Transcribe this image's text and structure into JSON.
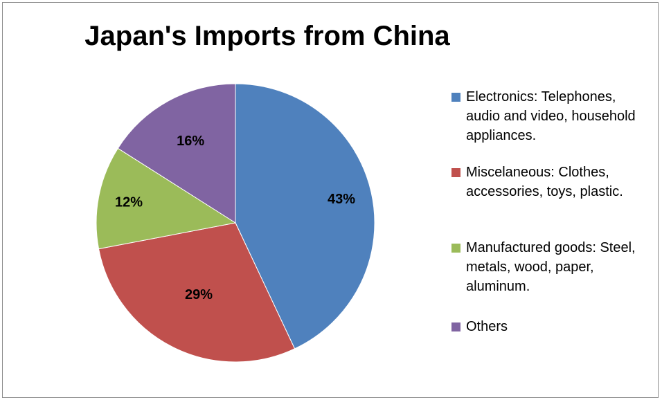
{
  "chart_data": {
    "type": "pie",
    "title": "Japan's Imports from China",
    "categories": [
      "Electronics: Telephones, audio and video, household appliances.",
      "Miscelaneous: Clothes, accessories, toys, plastic.",
      "Manufactured goods: Steel, metals, wood, paper, aluminum.",
      "Others"
    ],
    "values": [
      43,
      29,
      12,
      16
    ],
    "labels": [
      "43%",
      "29%",
      "12%",
      "16%"
    ],
    "colors": [
      "#4f81bd",
      "#c0504d",
      "#9bbb59",
      "#8064a2"
    ],
    "legend_position": "right",
    "start_angle": "12 o'clock, clockwise"
  }
}
